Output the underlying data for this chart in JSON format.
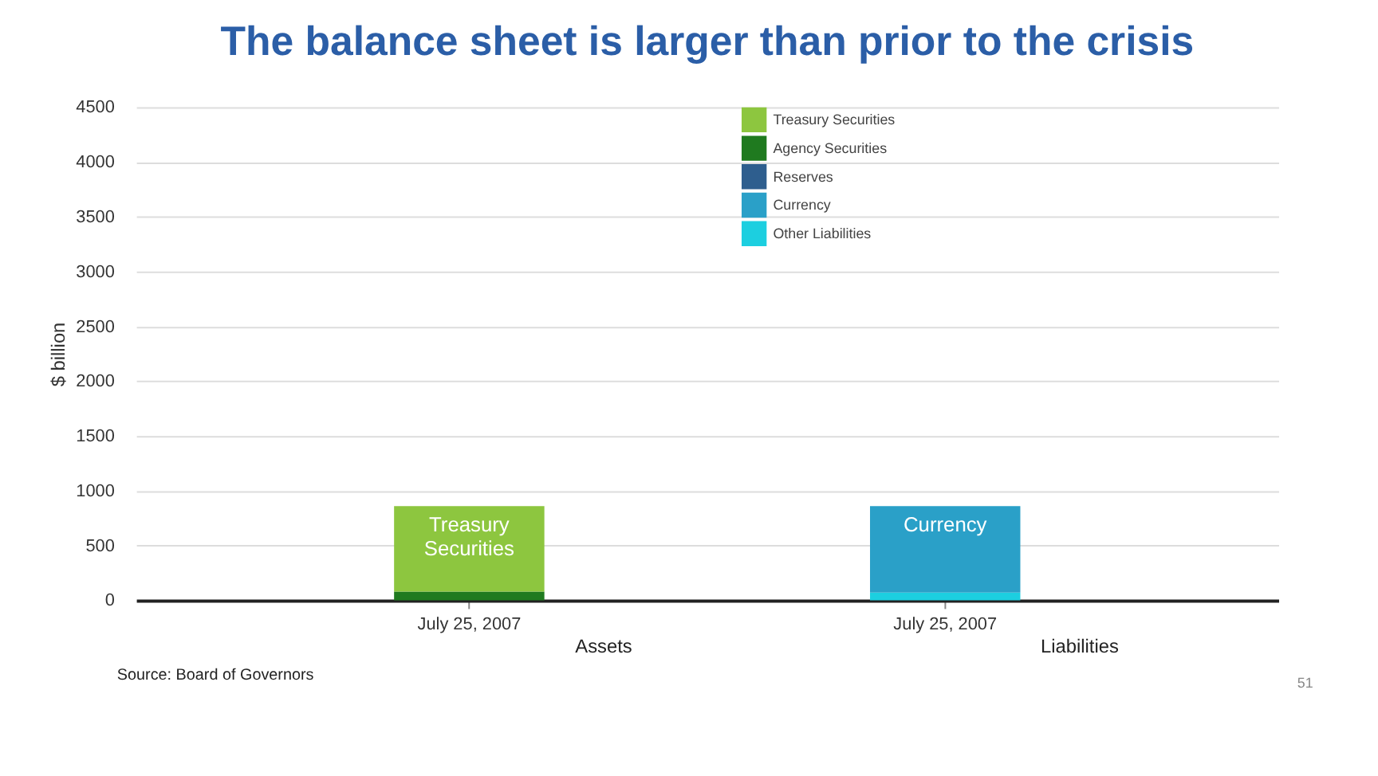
{
  "chart_data": {
    "type": "bar",
    "title": "The balance sheet is larger than prior to the crisis",
    "ylabel": "$ billion",
    "categories": [
      "July 25, 2007",
      "July 25, 2007"
    ],
    "stacked": true,
    "series": [
      {
        "name": "Other Liabilities",
        "color": "#1ccfe0",
        "values": [
          null,
          70
        ]
      },
      {
        "name": "Currency",
        "color": "#2aa0c8",
        "values": [
          null,
          790
        ]
      },
      {
        "name": "Reserves",
        "color": "#2e5e8e",
        "values": [
          null,
          null
        ]
      },
      {
        "name": "Agency Securities",
        "color": "#1f7a1f",
        "values": [
          80,
          null
        ]
      },
      {
        "name": "Treasury Securities",
        "color": "#8dc63f",
        "values": [
          780,
          null
        ]
      }
    ],
    "ylim": [
      0,
      4500
    ],
    "yticks": [
      0,
      500,
      1000,
      1500,
      2000,
      2500,
      3000,
      3500,
      4000,
      4500
    ],
    "grid": "y",
    "legend": "top",
    "annotations": [
      "Assets",
      "Liabilities",
      "Source: Board of Governors",
      "51"
    ]
  }
}
